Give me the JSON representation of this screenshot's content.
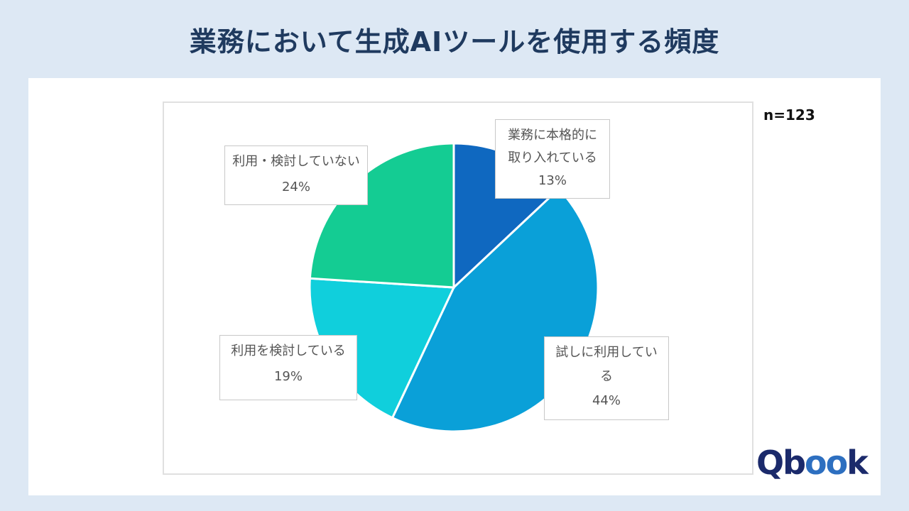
{
  "title": "業務において生成AIツールを使用する頻度",
  "sample_size": "n=123",
  "logo": {
    "q": "Q",
    "b": "b",
    "oo": "oo",
    "k": "k"
  },
  "labels": {
    "full": {
      "line1": "業務に本格的に",
      "line2": "取り入れている",
      "pct": "13%"
    },
    "trial": {
      "line1": "試しに利用してい",
      "line2": "る",
      "pct": "44%"
    },
    "considering": {
      "line1": "利用を検討している",
      "pct": "19%"
    },
    "none": {
      "line1": "利用・検討していない",
      "pct": "24%"
    }
  },
  "chart_data": {
    "type": "pie",
    "title": "業務において生成AIツールを使用する頻度",
    "annotation": "n=123",
    "categories": [
      "業務に本格的に取り入れている",
      "試しに利用している",
      "利用を検討している",
      "利用・検討していない"
    ],
    "values": [
      13,
      44,
      19,
      24
    ],
    "unit": "%",
    "colors": [
      "#0f68c0",
      "#0aa0d8",
      "#10cfdc",
      "#14cc93"
    ],
    "start_angle": "12 o'clock, clockwise",
    "legend": "none (data labels with callout boxes)"
  }
}
